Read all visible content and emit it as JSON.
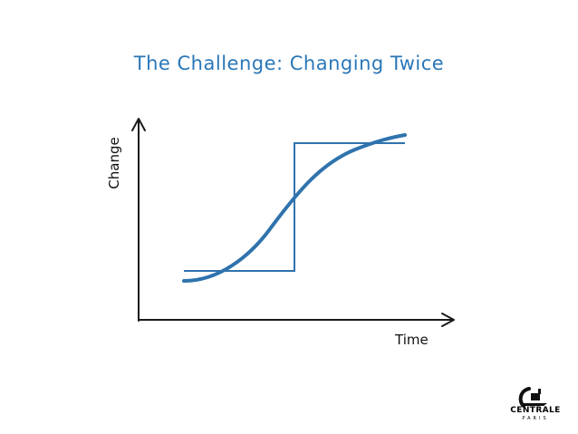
{
  "title": "The Challenge: Changing Twice",
  "axes": {
    "y_label": "Change",
    "x_label": "Time"
  },
  "logo": {
    "name": "CENTRALE",
    "sub": "PARIS"
  },
  "colors": {
    "title": "#2a77b8",
    "curve": "#2f73ad",
    "step": "#2f73ad",
    "axis": "#1a1a1a"
  }
}
